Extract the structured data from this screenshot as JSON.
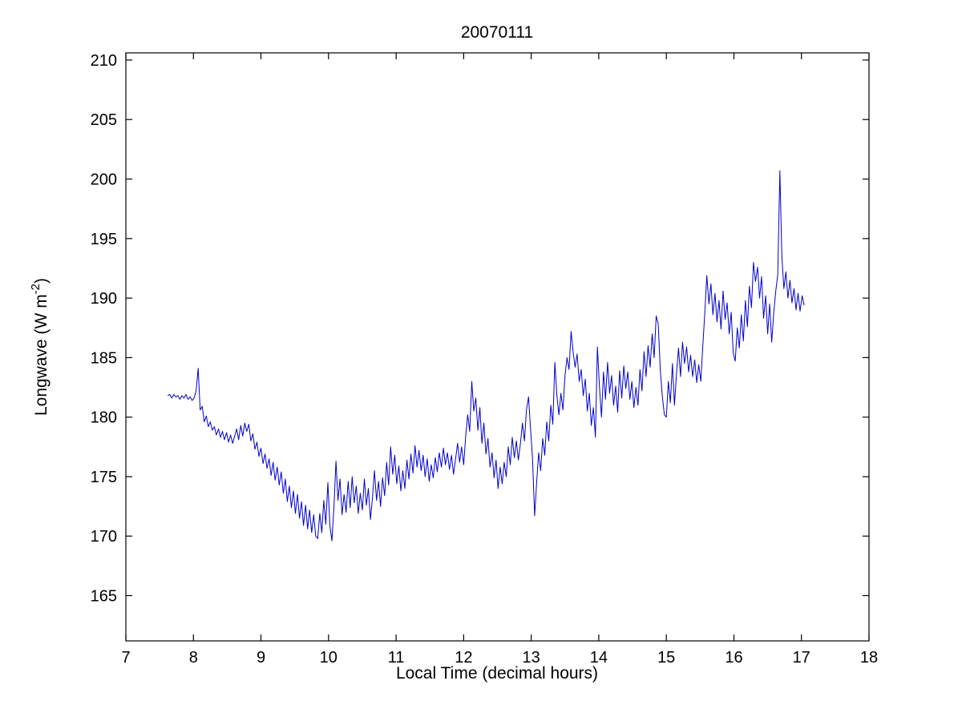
{
  "figure": {
    "background": "#ffffff"
  },
  "chart_data": {
    "type": "line",
    "title": "20070111",
    "xlabel": "Local Time (decimal hours)",
    "ylabel_main": "Longwave (W m",
    "ylabel_sup": "-2",
    "ylabel_close": ")",
    "xlim": [
      7,
      18
    ],
    "ylim": [
      161.2,
      210.6
    ],
    "xticks": [
      7,
      8,
      9,
      10,
      11,
      12,
      13,
      14,
      15,
      16,
      17,
      18
    ],
    "yticks": [
      165,
      170,
      175,
      180,
      185,
      190,
      195,
      200,
      205,
      210
    ],
    "grid": false,
    "legend": null,
    "line_color": "#0000cd",
    "line_width": 1,
    "x_start": 7.62,
    "x_step": 0.03,
    "values": [
      181.8,
      181.9,
      181.6,
      181.9,
      181.7,
      181.8,
      181.5,
      181.8,
      181.6,
      181.9,
      181.5,
      181.7,
      181.4,
      181.6,
      182.2,
      184.1,
      180.6,
      180.9,
      179.6,
      180.1,
      179.2,
      179.6,
      178.9,
      179.2,
      178.5,
      179.0,
      178.3,
      178.8,
      178.1,
      178.7,
      177.9,
      178.5,
      177.8,
      178.4,
      179.0,
      178.1,
      179.3,
      178.4,
      179.5,
      178.8,
      179.4,
      178.0,
      178.6,
      177.3,
      177.9,
      176.7,
      177.4,
      176.1,
      176.9,
      175.7,
      176.5,
      175.1,
      176.2,
      174.7,
      175.8,
      174.3,
      175.4,
      173.6,
      174.8,
      172.9,
      174.2,
      172.4,
      173.8,
      171.9,
      173.5,
      171.5,
      172.9,
      170.9,
      172.6,
      170.6,
      172.2,
      170.3,
      171.8,
      170.0,
      169.8,
      171.9,
      170.3,
      173.0,
      171.0,
      174.5,
      170.9,
      169.6,
      172.5,
      176.3,
      173.0,
      174.8,
      171.8,
      173.5,
      172.0,
      174.6,
      172.4,
      175.0,
      172.8,
      174.2,
      171.9,
      173.6,
      172.2,
      174.8,
      172.6,
      174.0,
      171.4,
      173.2,
      175.5,
      173.0,
      174.6,
      172.5,
      174.9,
      173.4,
      176.2,
      174.3,
      177.5,
      175.2,
      176.8,
      174.4,
      175.9,
      173.8,
      175.5,
      174.0,
      176.4,
      174.8,
      176.9,
      175.3,
      177.6,
      175.8,
      177.2,
      175.5,
      176.8,
      175.0,
      176.5,
      174.6,
      176.0,
      174.9,
      176.6,
      175.4,
      177.0,
      175.8,
      177.4,
      176.0,
      177.0,
      175.6,
      176.8,
      175.2,
      176.5,
      177.8,
      176.2,
      177.5,
      176.0,
      178.4,
      180.2,
      178.8,
      183.0,
      180.5,
      181.6,
      178.9,
      180.8,
      177.8,
      179.5,
      176.9,
      178.2,
      175.8,
      177.0,
      174.9,
      176.4,
      174.0,
      175.8,
      174.4,
      176.2,
      175.0,
      177.5,
      176.0,
      178.3,
      176.6,
      178.0,
      176.4,
      177.8,
      179.5,
      178.0,
      180.6,
      181.7,
      179.0,
      176.5,
      171.7,
      174.5,
      177.0,
      175.5,
      178.2,
      176.8,
      179.6,
      178.0,
      181.0,
      179.4,
      184.6,
      181.8,
      180.2,
      182.0,
      180.6,
      183.5,
      185.0,
      184.0,
      187.2,
      185.5,
      184.2,
      185.3,
      183.0,
      184.0,
      181.8,
      183.2,
      180.5,
      182.0,
      179.3,
      180.8,
      178.3,
      185.9,
      182.5,
      180.0,
      183.8,
      181.5,
      184.6,
      182.0,
      183.5,
      181.0,
      182.6,
      180.4,
      183.9,
      181.6,
      184.3,
      182.4,
      183.8,
      181.5,
      183.0,
      180.8,
      182.5,
      181.0,
      184.0,
      182.2,
      185.5,
      183.4,
      186.0,
      184.2,
      187.0,
      185.0,
      188.5,
      187.8,
      184.0,
      181.8,
      180.2,
      180.0,
      183.0,
      181.2,
      184.5,
      181.0,
      183.6,
      185.8,
      183.4,
      186.3,
      184.5,
      185.9,
      183.8,
      185.2,
      183.4,
      184.8,
      182.9,
      184.4,
      183.0,
      186.0,
      188.8,
      191.9,
      189.5,
      191.2,
      188.6,
      190.4,
      188.0,
      189.8,
      187.4,
      190.6,
      188.2,
      189.6,
      187.0,
      188.8,
      185.4,
      184.7,
      187.5,
      185.8,
      188.6,
      186.4,
      189.8,
      187.6,
      191.0,
      189.2,
      193.0,
      191.4,
      192.6,
      190.0,
      191.8,
      188.3,
      190.2,
      187.0,
      189.5,
      186.3,
      188.8,
      190.6,
      192.0,
      200.7,
      193.5,
      190.8,
      192.2,
      190.0,
      191.5,
      189.6,
      190.8,
      189.0,
      190.4,
      188.9,
      190.2,
      189.4
    ]
  }
}
